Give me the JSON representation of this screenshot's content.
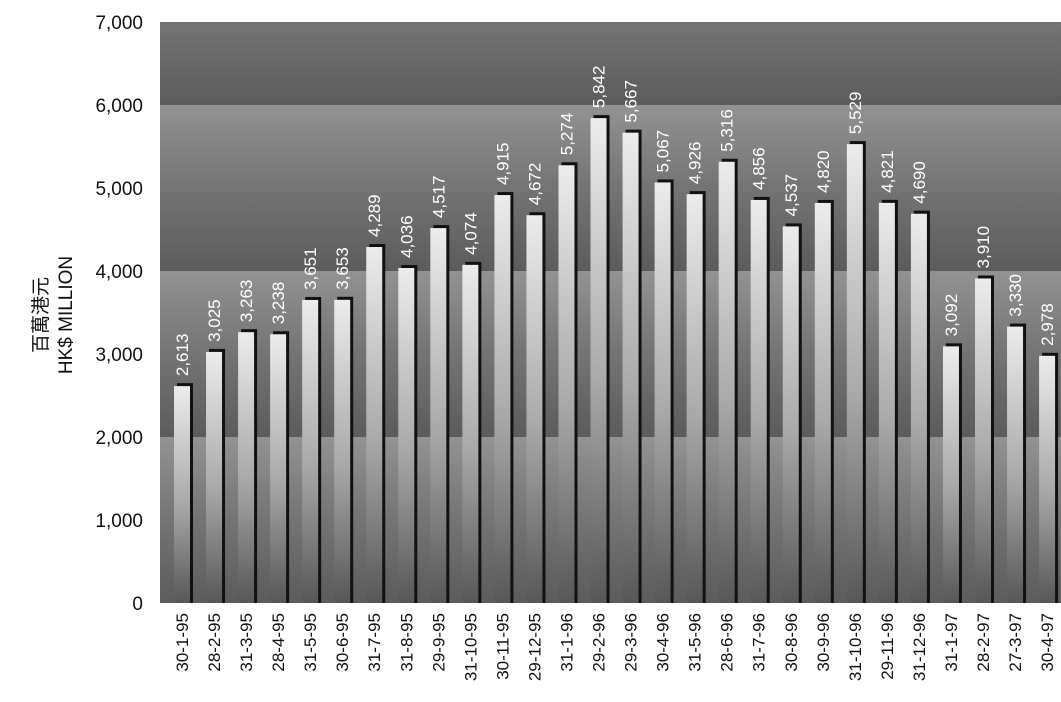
{
  "chart_data": {
    "type": "bar",
    "ylabel_zh": "百萬港元",
    "ylabel": "HK$ MILLION",
    "ylim": [
      0,
      7000
    ],
    "yticks": [
      "0",
      "1,000",
      "2,000",
      "3,000",
      "4,000",
      "5,000",
      "6,000",
      "7,000"
    ],
    "categories": [
      "30-1-95",
      "28-2-95",
      "31-3-95",
      "28-4-95",
      "31-5-95",
      "30-6-95",
      "31-7-95",
      "31-8-95",
      "29-9-95",
      "31-10-95",
      "30-11-95",
      "29-12-95",
      "31-1-96",
      "29-2-96",
      "29-3-96",
      "30-4-96",
      "31-5-96",
      "28-6-96",
      "31-7-96",
      "30-8-96",
      "30-9-96",
      "31-10-96",
      "29-11-96",
      "31-12-96",
      "31-1-97",
      "28-2-97",
      "27-3-97",
      "30-4-97"
    ],
    "values": [
      2613,
      3025,
      3263,
      3238,
      3651,
      3653,
      4289,
      4036,
      4517,
      4074,
      4915,
      4672,
      5274,
      5842,
      5667,
      5067,
      4926,
      5316,
      4856,
      4537,
      4820,
      5529,
      4821,
      4690,
      3092,
      3910,
      3330,
      2978
    ],
    "data_labels": [
      "2,613",
      "3,025",
      "3,263",
      "3,238",
      "3,651",
      "3,653",
      "4,289",
      "4,036",
      "4,517",
      "4,074",
      "4,915",
      "4,672",
      "5,274",
      "5,842",
      "5,667",
      "5,067",
      "4,926",
      "5,316",
      "4,856",
      "4,537",
      "4,820",
      "5,529",
      "4,821",
      "4,690",
      "3,092",
      "3,910",
      "3,330",
      "2,978"
    ],
    "colors": {
      "band_light": "#9a9a9a",
      "band_dark": "#7a7a7a",
      "bar_top": "#e8e8e8",
      "bar_bottom": "#5a5a5a",
      "bar_shadow": "#111111",
      "label": "#ffffff"
    }
  }
}
